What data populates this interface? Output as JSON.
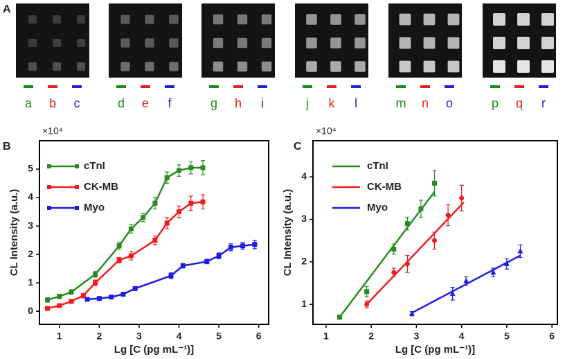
{
  "panel_a": {
    "label": "A",
    "letters": [
      "a",
      "b",
      "c",
      "d",
      "e",
      "f",
      "g",
      "h",
      "i",
      "j",
      "k",
      "l",
      "m",
      "n",
      "o",
      "p",
      "q",
      "r"
    ],
    "colors": [
      "#1a8c1a",
      "#e8201c",
      "#1c24e0"
    ]
  },
  "chart_data": [
    {
      "type": "line",
      "panel": "B",
      "y_scale_label": "×10⁴",
      "xlabel": "Lg [C (pg mL⁻¹)]",
      "ylabel": "CL Intensity (a.u.)",
      "xlim": [
        0.5,
        6.25
      ],
      "xticks": [
        1,
        2,
        3,
        4,
        5,
        6
      ],
      "ylim": [
        -0.46,
        6.0
      ],
      "yticks": [
        0,
        1,
        2,
        3,
        4,
        5
      ],
      "legend": "upper left",
      "series": [
        {
          "name": "cTnI",
          "color": "#2a8a22",
          "marker": "square",
          "x": [
            0.7,
            1.0,
            1.3,
            1.9,
            2.5,
            2.8,
            3.1,
            3.4,
            3.7,
            4.0,
            4.3,
            4.6
          ],
          "values": [
            0.4,
            0.52,
            0.68,
            1.3,
            2.3,
            2.9,
            3.3,
            3.8,
            4.7,
            4.95,
            5.05,
            5.05
          ],
          "errors": [
            0.08,
            0.08,
            0.08,
            0.1,
            0.12,
            0.15,
            0.15,
            0.2,
            0.2,
            0.2,
            0.22,
            0.25
          ]
        },
        {
          "name": "CK-MB",
          "color": "#ee1c1c",
          "marker": "square",
          "x": [
            0.7,
            1.0,
            1.3,
            1.6,
            1.9,
            2.5,
            2.8,
            3.4,
            3.7,
            4.0,
            4.3,
            4.6
          ],
          "values": [
            0.1,
            0.2,
            0.35,
            0.55,
            1.0,
            1.8,
            1.95,
            2.5,
            3.1,
            3.5,
            3.8,
            3.85
          ],
          "errors": [
            0.06,
            0.06,
            0.06,
            0.08,
            0.1,
            0.1,
            0.15,
            0.15,
            0.2,
            0.2,
            0.25,
            0.25
          ]
        },
        {
          "name": "Myo",
          "color": "#1c1ce8",
          "marker": "square",
          "x": [
            1.7,
            2.0,
            2.3,
            2.6,
            2.9,
            3.8,
            4.1,
            4.7,
            5.0,
            5.3,
            5.6,
            5.9
          ],
          "values": [
            0.42,
            0.45,
            0.5,
            0.6,
            0.8,
            1.25,
            1.6,
            1.75,
            1.95,
            2.25,
            2.3,
            2.35
          ],
          "errors": [
            0.05,
            0.05,
            0.05,
            0.06,
            0.06,
            0.1,
            0.08,
            0.08,
            0.1,
            0.12,
            0.12,
            0.15
          ]
        }
      ]
    },
    {
      "type": "scatter",
      "panel": "C",
      "y_scale_label": "×10⁴",
      "xlabel": "Lg [C (pg mL⁻¹)]",
      "ylabel": "CL Intensity (a.u.)",
      "xlim": [
        0.71,
        6.12
      ],
      "xticks": [
        1,
        2,
        3,
        4,
        5,
        6
      ],
      "ylim": [
        0.53,
        4.85
      ],
      "yticks": [
        1,
        2,
        3,
        4
      ],
      "legend": "upper left",
      "series": [
        {
          "name": "cTnI",
          "color": "#2a8a22",
          "marker": "square",
          "x": [
            1.3,
            1.9,
            2.5,
            2.8,
            3.1,
            3.4
          ],
          "values": [
            0.7,
            1.3,
            2.3,
            2.9,
            3.25,
            3.85
          ],
          "errors": [
            0.05,
            0.12,
            0.12,
            0.15,
            0.2,
            0.3
          ],
          "fit_x": [
            1.3,
            3.4
          ],
          "fit_y": [
            0.7,
            3.65
          ]
        },
        {
          "name": "CK-MB",
          "color": "#ee1c1c",
          "marker": "circle",
          "x": [
            1.9,
            2.5,
            2.8,
            3.4,
            3.7,
            4.0
          ],
          "values": [
            1.0,
            1.75,
            1.95,
            2.5,
            3.1,
            3.5
          ],
          "errors": [
            0.08,
            0.1,
            0.2,
            0.2,
            0.25,
            0.3
          ],
          "fit_x": [
            1.9,
            4.05
          ],
          "fit_y": [
            1.0,
            3.4
          ]
        },
        {
          "name": "Myo",
          "color": "#1c1ce8",
          "marker": "triangle",
          "x": [
            2.9,
            3.8,
            4.1,
            4.7,
            5.0,
            5.3
          ],
          "values": [
            0.78,
            1.25,
            1.55,
            1.75,
            1.95,
            2.25
          ],
          "errors": [
            0.05,
            0.15,
            0.1,
            0.1,
            0.12,
            0.15
          ],
          "fit_x": [
            2.9,
            5.3
          ],
          "fit_y": [
            0.8,
            2.15
          ]
        }
      ]
    }
  ]
}
